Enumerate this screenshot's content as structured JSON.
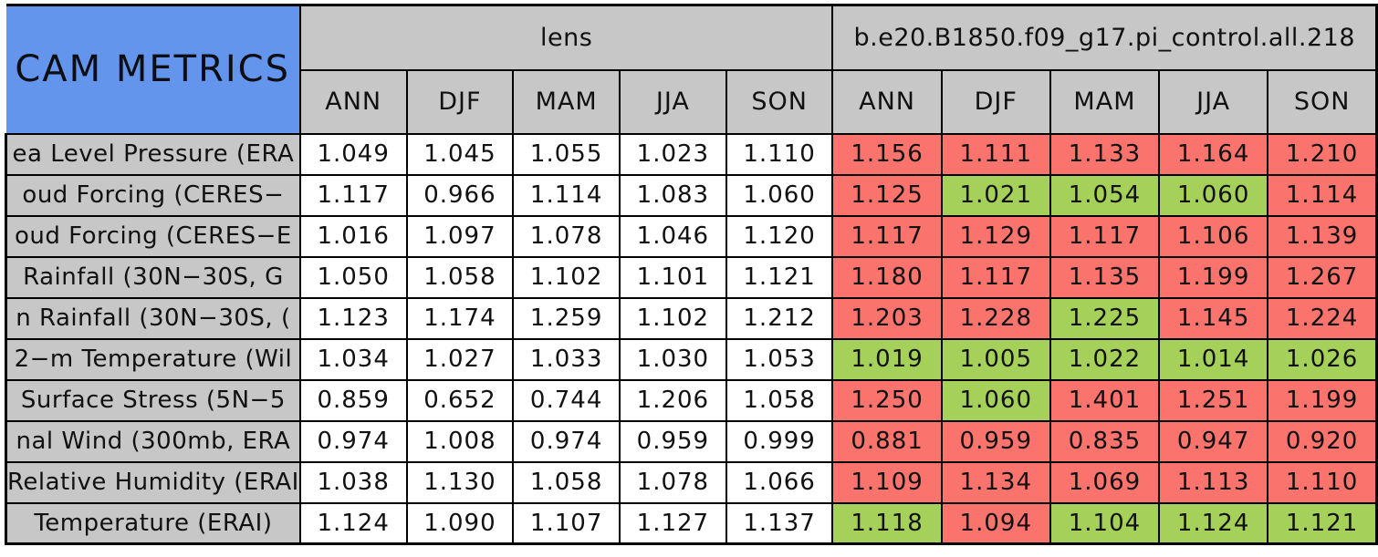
{
  "colors": {
    "title_bg": "#6495ED",
    "header_bg": "#C7C7C7",
    "label_bg": "#C7C7C7",
    "lens_value_bg": "#FFFFFF",
    "worse_bg": "#FA736C",
    "better_bg": "#A5D05A",
    "border": "#000000",
    "text": "#111111"
  },
  "chart_data": {
    "type": "table",
    "title": "CAM METRICS",
    "column_groups": [
      "lens",
      "b.e20.B1850.f09_g17.pi_control.all.218"
    ],
    "seasons": [
      "ANN",
      "DJF",
      "MAM",
      "JJA",
      "SON"
    ],
    "rows": [
      {
        "label": "ea Level Pressure (ERA",
        "lens": [
          "1.049",
          "1.045",
          "1.055",
          "1.023",
          "1.110"
        ],
        "control": [
          "1.156",
          "1.111",
          "1.133",
          "1.164",
          "1.210"
        ],
        "control_status": [
          "bad",
          "bad",
          "bad",
          "bad",
          "bad"
        ]
      },
      {
        "label": "oud Forcing (CERES−",
        "lens": [
          "1.117",
          "0.966",
          "1.114",
          "1.083",
          "1.060"
        ],
        "control": [
          "1.125",
          "1.021",
          "1.054",
          "1.060",
          "1.114"
        ],
        "control_status": [
          "bad",
          "good",
          "good",
          "good",
          "bad"
        ]
      },
      {
        "label": "oud Forcing (CERES−E",
        "lens": [
          "1.016",
          "1.097",
          "1.078",
          "1.046",
          "1.120"
        ],
        "control": [
          "1.117",
          "1.129",
          "1.117",
          "1.106",
          "1.139"
        ],
        "control_status": [
          "bad",
          "bad",
          "bad",
          "bad",
          "bad"
        ]
      },
      {
        "label": "Rainfall (30N−30S, G",
        "lens": [
          "1.050",
          "1.058",
          "1.102",
          "1.101",
          "1.121"
        ],
        "control": [
          "1.180",
          "1.117",
          "1.135",
          "1.199",
          "1.267"
        ],
        "control_status": [
          "bad",
          "bad",
          "bad",
          "bad",
          "bad"
        ]
      },
      {
        "label": "n Rainfall (30N−30S, (",
        "lens": [
          "1.123",
          "1.174",
          "1.259",
          "1.102",
          "1.212"
        ],
        "control": [
          "1.203",
          "1.228",
          "1.225",
          "1.145",
          "1.224"
        ],
        "control_status": [
          "bad",
          "bad",
          "good",
          "bad",
          "bad"
        ]
      },
      {
        "label": "2−m Temperature (Wil",
        "lens": [
          "1.034",
          "1.027",
          "1.033",
          "1.030",
          "1.053"
        ],
        "control": [
          "1.019",
          "1.005",
          "1.022",
          "1.014",
          "1.026"
        ],
        "control_status": [
          "good",
          "good",
          "good",
          "good",
          "good"
        ]
      },
      {
        "label": "Surface Stress (5N−5",
        "lens": [
          "0.859",
          "0.652",
          "0.744",
          "1.206",
          "1.058"
        ],
        "control": [
          "1.250",
          "1.060",
          "1.401",
          "1.251",
          "1.199"
        ],
        "control_status": [
          "bad",
          "good",
          "bad",
          "bad",
          "bad"
        ]
      },
      {
        "label": "nal Wind (300mb, ERA",
        "lens": [
          "0.974",
          "1.008",
          "0.974",
          "0.959",
          "0.999"
        ],
        "control": [
          "0.881",
          "0.959",
          "0.835",
          "0.947",
          "0.920"
        ],
        "control_status": [
          "bad",
          "bad",
          "bad",
          "bad",
          "bad"
        ]
      },
      {
        "label": "Relative Humidity (ERAI",
        "lens": [
          "1.038",
          "1.130",
          "1.058",
          "1.078",
          "1.066"
        ],
        "control": [
          "1.109",
          "1.134",
          "1.069",
          "1.113",
          "1.110"
        ],
        "control_status": [
          "bad",
          "bad",
          "bad",
          "bad",
          "bad"
        ]
      },
      {
        "label": "Temperature (ERAI)",
        "lens": [
          "1.124",
          "1.090",
          "1.107",
          "1.127",
          "1.137"
        ],
        "control": [
          "1.118",
          "1.094",
          "1.104",
          "1.124",
          "1.121"
        ],
        "control_status": [
          "good",
          "bad",
          "good",
          "good",
          "good"
        ]
      }
    ]
  }
}
